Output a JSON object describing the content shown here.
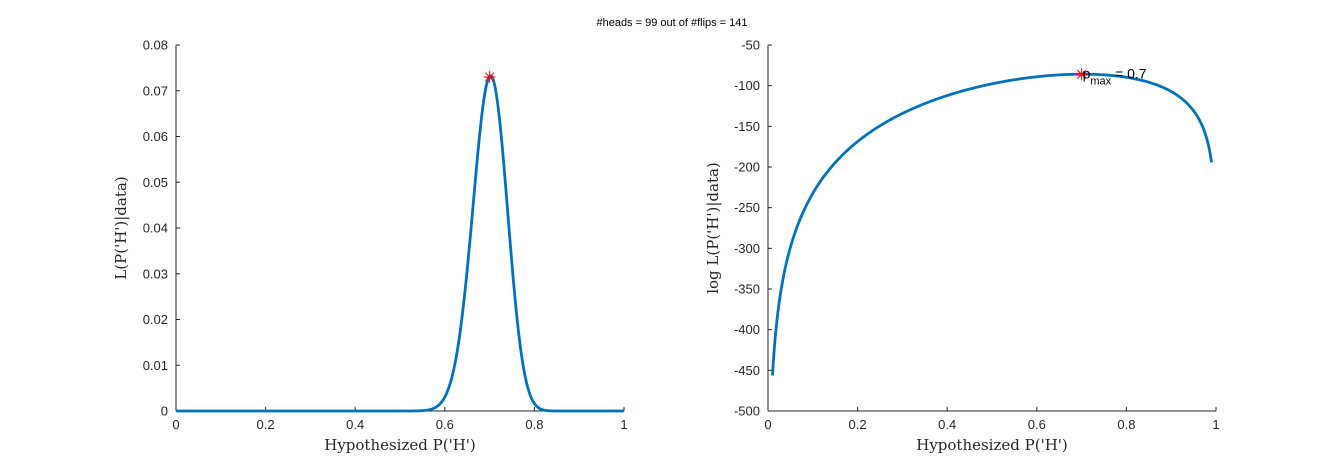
{
  "figure": {
    "suptitle": "#heads = 99 out of #flips = 141"
  },
  "colors": {
    "line": "#0072BD",
    "marker": "#FF0000",
    "axis": "#262626"
  },
  "chart_data": [
    {
      "type": "line",
      "title": "",
      "xlabel": "Hypothesized P('H')",
      "ylabel": "L(P('H')|data)",
      "xlim": [
        0,
        1
      ],
      "ylim": [
        0,
        0.08
      ],
      "xticks": [
        "0",
        "0.2",
        "0.4",
        "0.6",
        "0.8",
        "1"
      ],
      "yticks": [
        "0",
        "0.01",
        "0.02",
        "0.03",
        "0.04",
        "0.05",
        "0.06",
        "0.07",
        "0.08"
      ],
      "grid": false,
      "curve": "likelihood",
      "n_heads": 99,
      "n_flips": 141,
      "x_range": [
        0.001,
        0.999
      ],
      "series": [
        {
          "x": [
            0,
            0.55,
            0.58,
            0.6,
            0.62,
            0.64,
            0.66,
            0.68,
            0.7,
            0.72,
            0.74,
            0.76,
            0.78,
            0.8,
            0.82,
            0.85,
            1
          ],
          "y": [
            0,
            0.0001,
            0.0008,
            0.0026,
            0.0068,
            0.0155,
            0.0315,
            0.0539,
            0.0731,
            0.0683,
            0.0495,
            0.0262,
            0.0098,
            0.0026,
            0.0005,
            0.0,
            0
          ]
        }
      ],
      "marker": {
        "x": 0.7,
        "y": 0.073,
        "symbol": "asterisk"
      }
    },
    {
      "type": "line",
      "title": "",
      "xlabel": "Hypothesized P('H')",
      "ylabel": "log L(P('H')|data)",
      "xlim": [
        0,
        1
      ],
      "ylim": [
        -500,
        -50
      ],
      "xticks": [
        "0",
        "0.2",
        "0.4",
        "0.6",
        "0.8",
        "1"
      ],
      "yticks": [
        "-50",
        "-100",
        "-150",
        "-200",
        "-250",
        "-300",
        "-350",
        "-400",
        "-450",
        "-500"
      ],
      "grid": false,
      "curve": "log_likelihood",
      "n_heads": 99,
      "n_flips": 141,
      "x_range": [
        0.01,
        0.99
      ],
      "series": [
        {
          "x": [
            0.01,
            0.02,
            0.05,
            0.1,
            0.2,
            0.3,
            0.4,
            0.5,
            0.6,
            0.7,
            0.8,
            0.9,
            0.95,
            0.99
          ],
          "y": [
            -455,
            -387,
            -296,
            -228,
            -163,
            -130,
            -110,
            -98,
            -90,
            -86,
            -90,
            -111,
            -142,
            -193
          ]
        }
      ],
      "marker": {
        "x": 0.7,
        "y": -86,
        "symbol": "asterisk"
      },
      "annotation": {
        "main": "p",
        "sub": "max",
        "rest": " = 0.7"
      }
    }
  ]
}
